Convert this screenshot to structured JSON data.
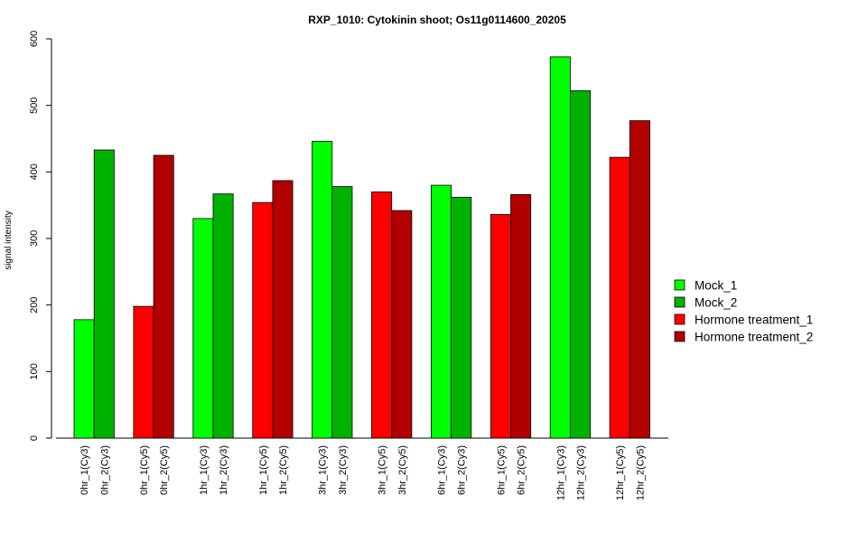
{
  "chart_data": {
    "type": "bar",
    "title": "RXP_1010: Cytokinin shoot; Os11g0114600_20205",
    "xlabel": "",
    "ylabel": "signal intensity",
    "ylim": [
      0,
      600
    ],
    "yticks": [
      0,
      100,
      200,
      300,
      400,
      500,
      600
    ],
    "grid": false,
    "legend_position": "right",
    "legend": [
      {
        "name": "Mock_1",
        "color": "#00ff00"
      },
      {
        "name": "Mock_2",
        "color": "#00b200"
      },
      {
        "name": "Hormone treatment_1",
        "color": "#ff0000"
      },
      {
        "name": "Hormone treatment_2",
        "color": "#b20000"
      }
    ],
    "groups": [
      {
        "bars": [
          {
            "label": "0hr_1(Cy3)",
            "value": 178,
            "series": 0
          },
          {
            "label": "0hr_2(Cy3)",
            "value": 433,
            "series": 1
          }
        ]
      },
      {
        "bars": [
          {
            "label": "0hr_1(Cy5)",
            "value": 198,
            "series": 2
          },
          {
            "label": "0hr_2(Cy5)",
            "value": 425,
            "series": 3
          }
        ]
      },
      {
        "bars": [
          {
            "label": "1hr_1(Cy3)",
            "value": 330,
            "series": 0
          },
          {
            "label": "1hr_2(Cy3)",
            "value": 367,
            "series": 1
          }
        ]
      },
      {
        "bars": [
          {
            "label": "1hr_1(Cy5)",
            "value": 354,
            "series": 2
          },
          {
            "label": "1hr_2(Cy5)",
            "value": 387,
            "series": 3
          }
        ]
      },
      {
        "bars": [
          {
            "label": "3hr_1(Cy3)",
            "value": 446,
            "series": 0
          },
          {
            "label": "3hr_2(Cy3)",
            "value": 378,
            "series": 1
          }
        ]
      },
      {
        "bars": [
          {
            "label": "3hr_1(Cy5)",
            "value": 370,
            "series": 2
          },
          {
            "label": "3hr_2(Cy5)",
            "value": 342,
            "series": 3
          }
        ]
      },
      {
        "bars": [
          {
            "label": "6hr_1(Cy3)",
            "value": 380,
            "series": 0
          },
          {
            "label": "6hr_2(Cy3)",
            "value": 362,
            "series": 1
          }
        ]
      },
      {
        "bars": [
          {
            "label": "6hr_1(Cy5)",
            "value": 336,
            "series": 2
          },
          {
            "label": "6hr_2(Cy5)",
            "value": 366,
            "series": 3
          }
        ]
      },
      {
        "bars": [
          {
            "label": "12hr_1(Cy3)",
            "value": 573,
            "series": 0
          },
          {
            "label": "12hr_2(Cy3)",
            "value": 522,
            "series": 1
          }
        ]
      },
      {
        "bars": [
          {
            "label": "12hr_1(Cy5)",
            "value": 422,
            "series": 2
          },
          {
            "label": "12hr_2(Cy5)",
            "value": 477,
            "series": 3
          }
        ]
      }
    ]
  }
}
